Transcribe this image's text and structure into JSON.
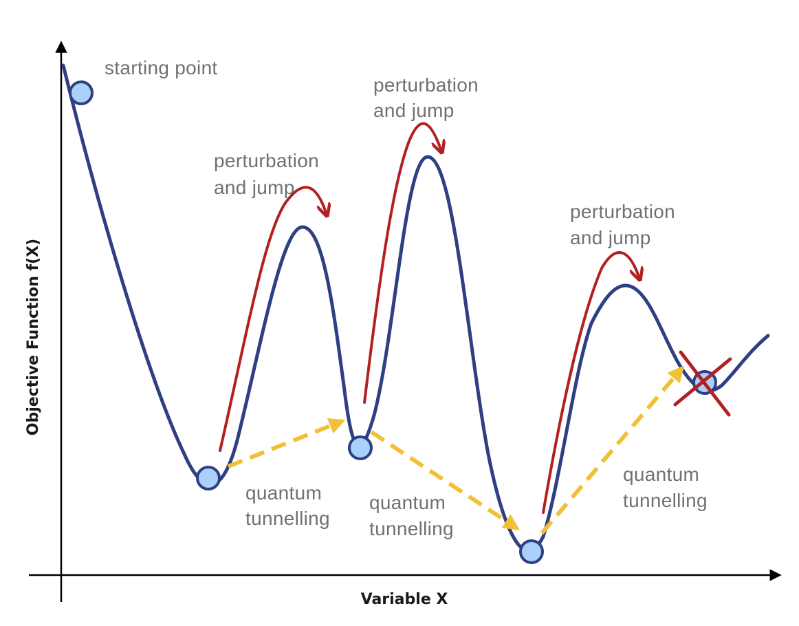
{
  "axes": {
    "x_label": "Variable X",
    "y_label": "Objective Function f(X)"
  },
  "labels": {
    "starting_point": "starting point",
    "perturbation_line1": "perturbation",
    "perturbation_line2": "and jump",
    "tunnelling_line1": "quantum",
    "tunnelling_line2": "tunnelling"
  },
  "colors": {
    "curve": "#2e3f82",
    "perturbation_arrow": "#b32020",
    "tunnelling_arrow": "#f2c037",
    "ball_fill": "#a9d1fb",
    "ball_stroke": "#2e3f82",
    "cross": "#b32020",
    "axis": "#000000",
    "label_text": "#707070"
  }
}
